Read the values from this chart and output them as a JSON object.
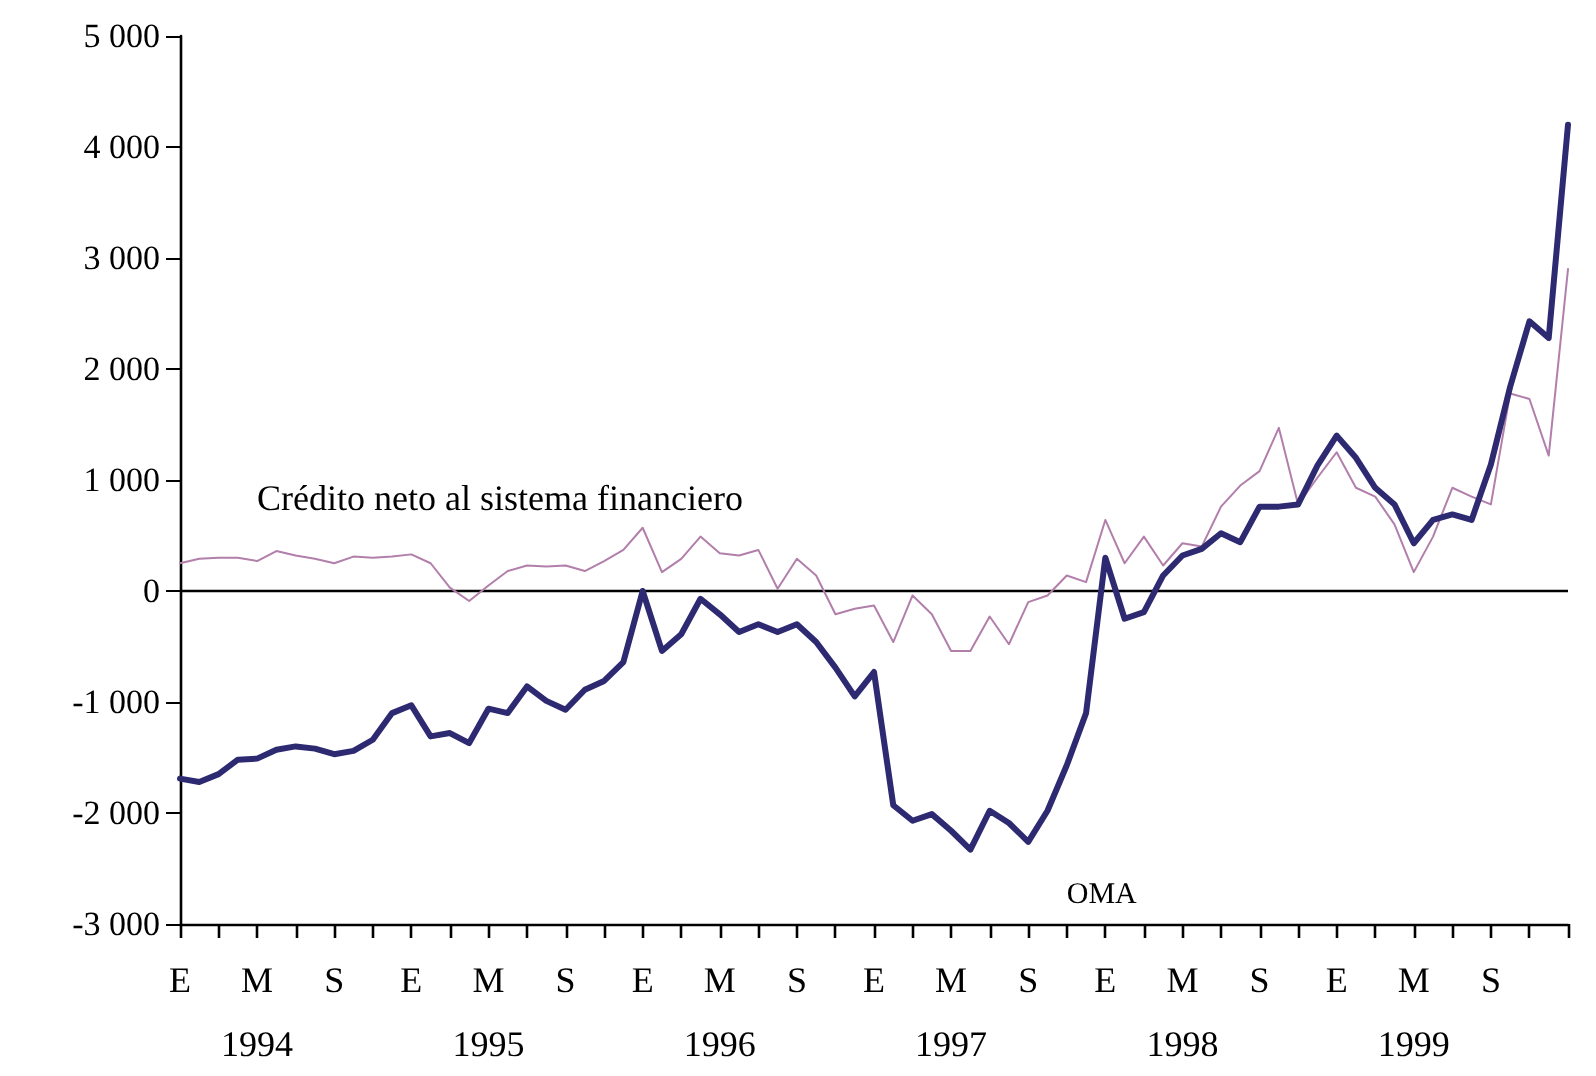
{
  "chart_data": {
    "type": "line",
    "categories": [
      "E",
      null,
      null,
      null,
      "M\n1994",
      null,
      null,
      null,
      "S",
      null,
      null,
      null,
      "E",
      null,
      null,
      null,
      "M\n1995",
      null,
      null,
      null,
      "S",
      null,
      null,
      null,
      "E",
      null,
      null,
      null,
      "M\n1996",
      null,
      null,
      null,
      "S",
      null,
      null,
      null,
      "E",
      null,
      null,
      null,
      "M\n1997",
      null,
      null,
      null,
      "S",
      null,
      null,
      null,
      "E",
      null,
      null,
      null,
      "M\n1998",
      null,
      null,
      null,
      "S",
      null,
      null,
      null,
      "E",
      null,
      null,
      null,
      "M\n1999",
      null,
      null,
      null,
      "S",
      null,
      null,
      null,
      null
    ],
    "series": [
      {
        "name": "Crédito neto al sistema financiero",
        "color": "#b27fab",
        "values": [
          250,
          290,
          300,
          300,
          270,
          360,
          320,
          290,
          250,
          310,
          300,
          310,
          330,
          250,
          30,
          -90,
          50,
          180,
          230,
          220,
          230,
          180,
          270,
          370,
          570,
          170,
          290,
          490,
          340,
          320,
          370,
          20,
          290,
          140,
          -210,
          -160,
          -130,
          -460,
          -40,
          -210,
          -540,
          -540,
          -230,
          -480,
          -100,
          -40,
          140,
          80,
          640,
          250,
          490,
          230,
          430,
          400,
          760,
          950,
          1080,
          1470,
          780,
          1020,
          1250,
          930,
          850,
          600,
          170,
          490,
          930,
          850,
          780,
          1780,
          1730,
          1220,
          2900
        ]
      },
      {
        "name": "OMA",
        "color": "#2e2a72",
        "values": [
          -1690,
          -1720,
          -1650,
          -1520,
          -1510,
          -1430,
          -1400,
          -1420,
          -1470,
          -1440,
          -1340,
          -1100,
          -1030,
          -1310,
          -1280,
          -1370,
          -1060,
          -1100,
          -860,
          -990,
          -1070,
          -890,
          -810,
          -640,
          0,
          -540,
          -390,
          -70,
          -210,
          -370,
          -300,
          -370,
          -300,
          -460,
          -690,
          -950,
          -730,
          -1930,
          -2070,
          -2010,
          -2160,
          -2330,
          -1980,
          -2090,
          -2260,
          -1980,
          -1570,
          -1100,
          300,
          -250,
          -190,
          140,
          320,
          380,
          520,
          440,
          760,
          760,
          780,
          1130,
          1400,
          1200,
          930,
          780,
          430,
          640,
          690,
          640,
          1140,
          1840,
          2430,
          2280,
          4200
        ]
      }
    ],
    "ylim": [
      -3000,
      5000
    ],
    "yticks": [
      {
        "value": -3000,
        "label": "-3 000"
      },
      {
        "value": -2000,
        "label": "-2 000"
      },
      {
        "value": -1000,
        "label": "-1 000"
      },
      {
        "value": 0,
        "label": "0"
      },
      {
        "value": 1000,
        "label": "1 000"
      },
      {
        "value": 2000,
        "label": "2 000"
      },
      {
        "value": 3000,
        "label": "3 000"
      },
      {
        "value": 4000,
        "label": "4 000"
      },
      {
        "value": 5000,
        "label": "5 000"
      }
    ],
    "ref_lines": [
      {
        "axis": "y",
        "value": 0,
        "color": "#000000"
      }
    ],
    "legend": false,
    "marker": "none",
    "line_style": "solid"
  }
}
